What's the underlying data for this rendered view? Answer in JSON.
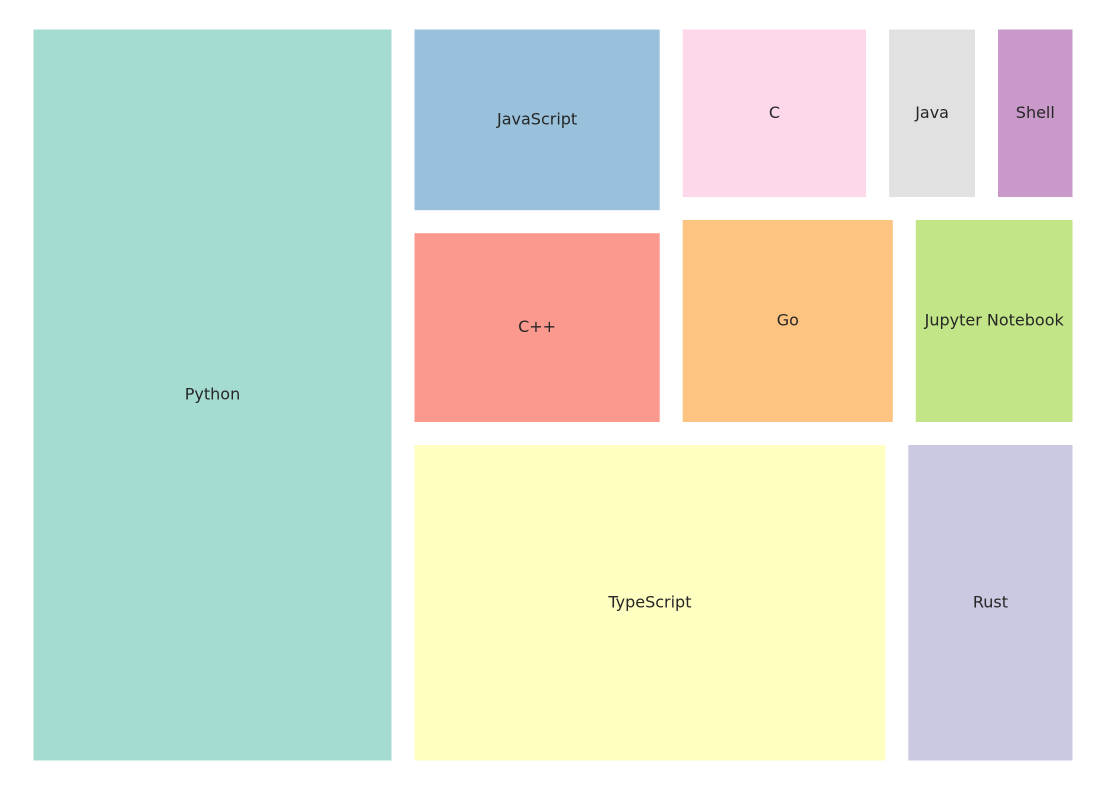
{
  "chart_data": {
    "type": "treemap",
    "title": "",
    "labels": [
      "Python",
      "TypeScript",
      "Rust",
      "C++",
      "JavaScript",
      "Go",
      "Jupyter Notebook",
      "C",
      "Java",
      "Shell"
    ],
    "values": [
      263,
      153,
      58,
      52,
      50,
      48,
      37,
      36,
      19,
      17
    ],
    "colors": [
      "#8dd3c7",
      "#ffffb3",
      "#bebada",
      "#fb8072",
      "#80b1d3",
      "#fdb462",
      "#b3de69",
      "#fccde5",
      "#d9d9d9",
      "#bc80bd"
    ],
    "tile_alpha": 0.8,
    "axes": "off"
  }
}
